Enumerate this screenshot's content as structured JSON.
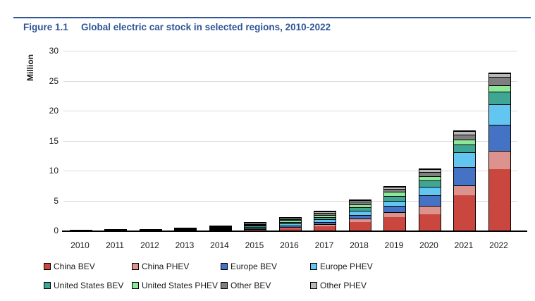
{
  "figure": {
    "label": "Figure 1.1",
    "title": "Global electric car stock in selected regions, 2010-2022"
  },
  "colors": {
    "title_navy": "#2F5597",
    "rule_navy": "#2F5597",
    "gridline": "#D9D9D9",
    "axis": "#000000",
    "segment_border": "#000000",
    "tick_text": "#1A1A1A"
  },
  "chart_data": {
    "type": "bar",
    "stacked": true,
    "title": "Global electric car stock in selected regions, 2010-2022",
    "xlabel": "",
    "ylabel": "Million",
    "ylim": [
      0,
      30
    ],
    "ytick_interval": 5,
    "yticks": [
      0,
      5,
      10,
      15,
      20,
      25,
      30
    ],
    "grid": true,
    "legend_position": "bottom",
    "legend_columns": 4,
    "categories": [
      "2010",
      "2011",
      "2012",
      "2013",
      "2014",
      "2015",
      "2016",
      "2017",
      "2018",
      "2019",
      "2020",
      "2021",
      "2022"
    ],
    "series": [
      {
        "name": "China BEV",
        "color": "#C9473E",
        "values": [
          0.01,
          0.01,
          0.02,
          0.03,
          0.08,
          0.23,
          0.6,
          0.95,
          1.7,
          2.55,
          2.9,
          6.2,
          10.6
        ]
      },
      {
        "name": "China PHEV",
        "color": "#DD938D",
        "values": [
          0.0,
          0.0,
          0.0,
          0.01,
          0.03,
          0.09,
          0.17,
          0.28,
          0.55,
          0.8,
          1.5,
          1.6,
          3.0
        ]
      },
      {
        "name": "Europe BEV",
        "color": "#4472C4",
        "values": [
          0.0,
          0.02,
          0.04,
          0.08,
          0.13,
          0.19,
          0.25,
          0.38,
          0.62,
          1.0,
          1.7,
          3.1,
          4.4
        ]
      },
      {
        "name": "Europe PHEV",
        "color": "#62C6F0",
        "values": [
          0.0,
          0.0,
          0.01,
          0.02,
          0.07,
          0.19,
          0.3,
          0.42,
          0.58,
          0.78,
          1.4,
          2.45,
          3.4
        ]
      },
      {
        "name": "United States BEV",
        "color": "#3FA694",
        "values": [
          0.0,
          0.01,
          0.03,
          0.08,
          0.14,
          0.21,
          0.3,
          0.4,
          0.64,
          0.88,
          1.05,
          1.25,
          2.1
        ]
      },
      {
        "name": "United States PHEV",
        "color": "#8EE698",
        "values": [
          0.0,
          0.01,
          0.04,
          0.09,
          0.14,
          0.19,
          0.27,
          0.36,
          0.47,
          0.57,
          0.65,
          0.7,
          0.95
        ]
      },
      {
        "name": "Other BEV",
        "color": "#7F7F7F",
        "values": [
          0.0,
          0.01,
          0.02,
          0.04,
          0.06,
          0.09,
          0.12,
          0.2,
          0.3,
          0.4,
          0.6,
          0.8,
          1.25
        ]
      },
      {
        "name": "Other PHEV",
        "color": "#B9B9B9",
        "values": [
          0.0,
          0.0,
          0.01,
          0.02,
          0.03,
          0.05,
          0.08,
          0.13,
          0.2,
          0.27,
          0.4,
          0.45,
          0.5
        ]
      }
    ]
  }
}
